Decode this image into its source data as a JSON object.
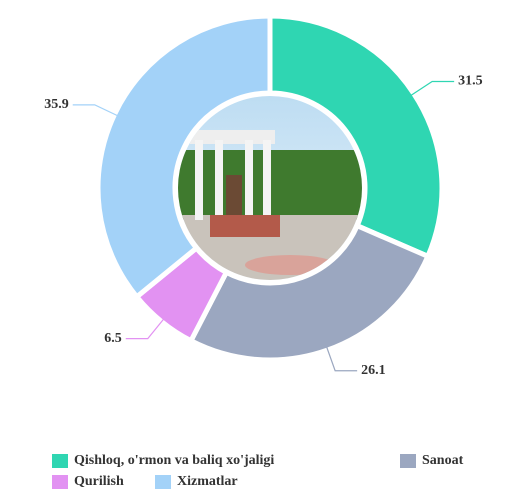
{
  "chart_data": {
    "type": "donut",
    "categories": [
      "Qishloq, o'rmon va baliq xo'jaligi",
      "Sanoat",
      "Qurilish",
      "Xizmatlar"
    ],
    "values": [
      31.5,
      26.1,
      6.5,
      35.9
    ],
    "colors": [
      "#2fd6b2",
      "#9ba7c0",
      "#e292f2",
      "#a3d2f8"
    ]
  }
}
